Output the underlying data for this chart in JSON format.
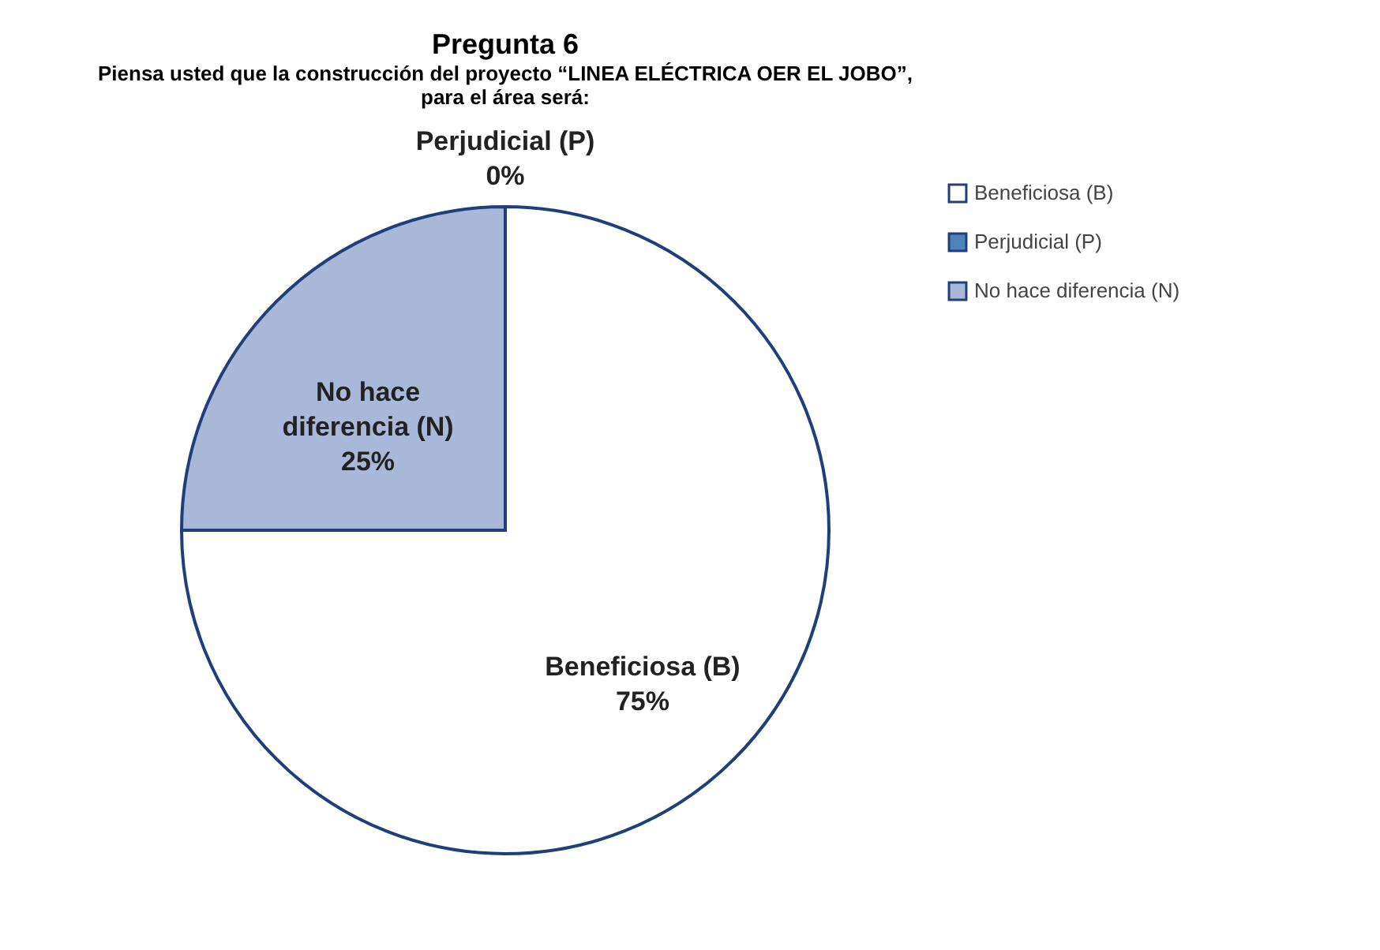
{
  "chart_data": {
    "type": "pie",
    "title": "Pregunta 6",
    "subtitle": "Piensa usted que la construcción del proyecto “LINEA ELÉCTRICA OER EL JOBO”, para el área será:",
    "categories": [
      "Beneficiosa (B)",
      "Perjudicial (P)",
      "No hace diferencia (N)"
    ],
    "values": [
      75,
      0,
      25
    ],
    "colors": [
      "#ffffff",
      "#4f81bd",
      "#a9b8d9"
    ],
    "value_labels": [
      "75%",
      "0%",
      "25%"
    ],
    "legend": "right"
  }
}
